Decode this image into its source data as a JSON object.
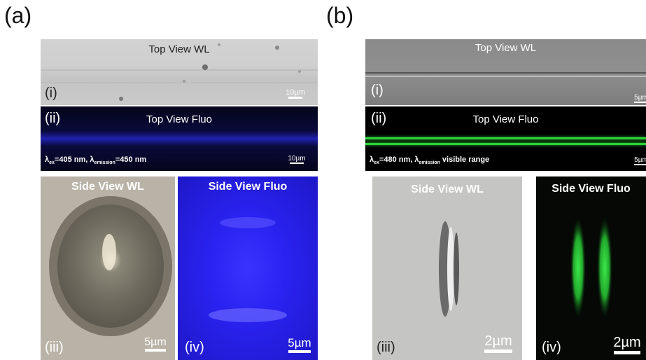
{
  "panel_a": {
    "label": "(a)",
    "top_wl": {
      "title": "Top View WL",
      "roman": "(i)",
      "scale": "10µm"
    },
    "top_fluo": {
      "title": "Top View Fluo",
      "roman": "(ii)",
      "scale": "10µm",
      "caption": {
        "lam1": "λ",
        "sub1": "ex",
        "eq1": "=405 nm, ",
        "lam2": "λ",
        "sub2": "emission",
        "eq2": "=450 nm"
      }
    },
    "side_wl": {
      "title": "Side View WL",
      "roman": "(iii)",
      "scale": "5µm"
    },
    "side_fluo": {
      "title": "Side View Fluo",
      "roman": "(iv)",
      "scale": "5µm"
    }
  },
  "panel_b": {
    "label": "(b)",
    "top_wl": {
      "title": "Top View WL",
      "roman": "(i)",
      "scale": "5µm"
    },
    "top_fluo": {
      "title": "Top View Fluo",
      "roman": "(ii)",
      "scale": "5µm",
      "caption": {
        "lam1": "λ",
        "sub1": "ex",
        "eq1": "=480 nm, ",
        "lam2": "λ",
        "sub2": "emission",
        "eq2": " visible range"
      }
    },
    "side_wl": {
      "title": "Side View WL",
      "roman": "(iii)",
      "scale": "2µm"
    },
    "side_fluo": {
      "title": "Side View Fluo",
      "roman": "(iv)",
      "scale": "2µm"
    }
  },
  "colors": {
    "blue_fluo": "#2a22f0",
    "green_fluo": "#2fd13a",
    "gray_wl": "#c9c9c9"
  }
}
